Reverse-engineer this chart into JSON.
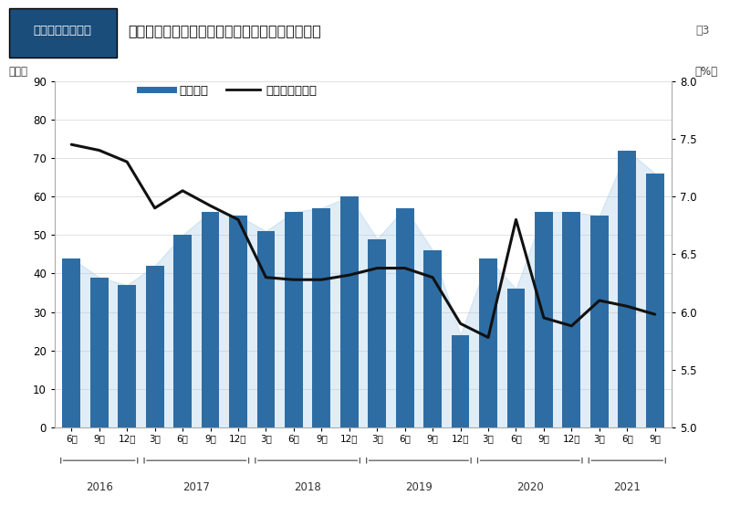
{
  "title_box_text": "城北・城東エリア",
  "title_main": "四半期ごと成約件数・平均成約表面利回りの推移",
  "fig_label": "図3",
  "ylabel_left": "（件）",
  "ylabel_right": "（%）",
  "legend_bar": "成約件数",
  "legend_line": "平均成約利回り",
  "categories": [
    "6月",
    "9月",
    "12月",
    "3月",
    "6月",
    "9月",
    "12月",
    "3月",
    "6月",
    "9月",
    "12月",
    "3月",
    "6月",
    "9月",
    "12月",
    "3月",
    "6月",
    "9月",
    "12月",
    "3月",
    "6月",
    "9月"
  ],
  "year_labels": [
    "2016",
    "2017",
    "2018",
    "2019",
    "2020",
    "2021"
  ],
  "bar_values": [
    44,
    39,
    37,
    42,
    50,
    56,
    55,
    51,
    56,
    57,
    60,
    49,
    57,
    46,
    24,
    44,
    36,
    56,
    56,
    55,
    72,
    66
  ],
  "line_values": [
    7.45,
    7.4,
    7.3,
    6.9,
    7.05,
    6.92,
    6.8,
    6.3,
    6.28,
    6.28,
    6.32,
    6.38,
    6.38,
    6.3,
    5.9,
    5.78,
    6.8,
    5.95,
    5.88,
    6.1,
    6.05,
    5.98
  ],
  "ylim_left": [
    0,
    90
  ],
  "ylim_right": [
    5.0,
    8.0
  ],
  "yticks_left": [
    0,
    10,
    20,
    30,
    40,
    50,
    60,
    70,
    80,
    90
  ],
  "yticks_right": [
    5.0,
    5.5,
    6.0,
    6.5,
    7.0,
    7.5,
    8.0
  ],
  "bar_color": "#2E6DA4",
  "line_color": "#111111",
  "title_box_bg": "#1a4d7a",
  "title_box_text_color": "#ffffff",
  "background_color": "#ffffff"
}
